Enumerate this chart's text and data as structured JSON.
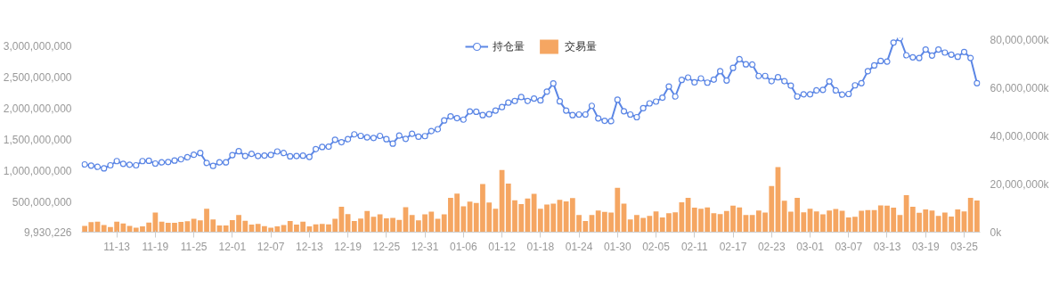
{
  "chart_data": {
    "type": "bar",
    "categories": [
      null,
      null,
      null,
      null,
      null,
      "11-13",
      null,
      null,
      null,
      null,
      null,
      "11-19",
      null,
      null,
      null,
      null,
      null,
      "11-25",
      null,
      null,
      null,
      null,
      null,
      "12-01",
      null,
      null,
      null,
      null,
      null,
      "12-07",
      null,
      null,
      null,
      null,
      null,
      "12-13",
      null,
      null,
      null,
      null,
      null,
      "12-19",
      null,
      null,
      null,
      null,
      null,
      "12-25",
      null,
      null,
      null,
      null,
      null,
      "12-31",
      null,
      null,
      null,
      null,
      null,
      "01-06",
      null,
      null,
      null,
      null,
      null,
      "01-12",
      null,
      null,
      null,
      null,
      null,
      "01-18",
      null,
      null,
      null,
      null,
      null,
      "01-24",
      null,
      null,
      null,
      null,
      null,
      "01-30",
      null,
      null,
      null,
      null,
      null,
      "02-05",
      null,
      null,
      null,
      null,
      null,
      "02-11",
      null,
      null,
      null,
      null,
      null,
      "02-17",
      null,
      null,
      null,
      null,
      null,
      "02-23",
      null,
      null,
      null,
      null,
      null,
      "03-01",
      null,
      null,
      null,
      null,
      null,
      "03-07",
      null,
      null,
      null,
      null,
      null,
      "03-13",
      null,
      null,
      null,
      null,
      null,
      "03-19",
      null,
      null,
      null,
      null,
      null,
      "03-25",
      null,
      null
    ],
    "series": [
      {
        "name": "持仓量",
        "type": "line",
        "color": "#5b86e5",
        "values": [
          1098000000,
          1078000000,
          1059000000,
          1035000000,
          1083000000,
          1151000000,
          1107000000,
          1093000000,
          1083000000,
          1151000000,
          1156000000,
          1112000000,
          1131000000,
          1136000000,
          1160000000,
          1180000000,
          1213000000,
          1252000000,
          1281000000,
          1122000000,
          1073000000,
          1131000000,
          1131000000,
          1247000000,
          1310000000,
          1233000000,
          1267000000,
          1233000000,
          1240000000,
          1250000000,
          1305000000,
          1281000000,
          1228000000,
          1233000000,
          1238000000,
          1218000000,
          1344000000,
          1378000000,
          1383000000,
          1494000000,
          1455000000,
          1503000000,
          1581000000,
          1556000000,
          1532000000,
          1523000000,
          1556000000,
          1503000000,
          1431000000,
          1561000000,
          1508000000,
          1590000000,
          1542000000,
          1552000000,
          1634000000,
          1663000000,
          1803000000,
          1870000000,
          1841000000,
          1817000000,
          1948000000,
          1943000000,
          1890000000,
          1904000000,
          1962000000,
          2018000000,
          2090000000,
          2117000000,
          2179000000,
          2117000000,
          2155000000,
          2126000000,
          2266000000,
          2397000000,
          2112000000,
          1962000000,
          1890000000,
          1899000000,
          1899000000,
          2039000000,
          1837000000,
          1798000000,
          1793000000,
          2136000000,
          1952000000,
          1899000000,
          1856000000,
          2001000000,
          2078000000,
          2107000000,
          2170000000,
          2349000000,
          2189000000,
          2455000000,
          2493000000,
          2416000000,
          2479000000,
          2411000000,
          2460000000,
          2595000000,
          2445000000,
          2648000000,
          2788000000,
          2705000000,
          2701000000,
          2518000000,
          2518000000,
          2435000000,
          2498000000,
          2435000000,
          2363000000,
          2189000000,
          2223000000,
          2223000000,
          2286000000,
          2295000000,
          2431000000,
          2286000000,
          2218000000,
          2228000000,
          2368000000,
          2402000000,
          2595000000,
          2687000000,
          2759000000,
          2749000000,
          3054000000,
          3126000000,
          2851000000,
          2817000000,
          2807000000,
          2943000000,
          2846000000,
          2943000000,
          2894000000,
          2861000000,
          2827000000,
          2904000000,
          2807000000,
          2402000000
        ]
      },
      {
        "name": "交易量",
        "axis": "y2",
        "color": "#f5a662",
        "values": [
          2640000,
          4150000,
          4400000,
          3020000,
          2140000,
          4400000,
          3650000,
          2640000,
          1890000,
          2390000,
          4030000,
          8180000,
          4400000,
          3900000,
          3900000,
          4280000,
          4530000,
          5540000,
          4910000,
          9810000,
          5280000,
          2770000,
          2770000,
          5030000,
          7170000,
          4780000,
          3150000,
          3400000,
          2520000,
          1890000,
          2390000,
          3020000,
          4650000,
          3150000,
          4400000,
          2390000,
          3270000,
          3400000,
          3300000,
          5540000,
          10570000,
          7550000,
          4650000,
          5660000,
          8810000,
          6420000,
          7420000,
          5790000,
          5910000,
          5160000,
          10440000,
          7170000,
          4910000,
          7420000,
          8550000,
          5540000,
          7420000,
          14340000,
          16100000,
          10820000,
          12710000,
          12200000,
          20130000,
          12330000,
          9810000,
          25910000,
          20250000,
          13340000,
          11700000,
          14090000,
          15980000,
          9810000,
          11570000,
          11950000,
          13460000,
          12830000,
          14220000,
          7170000,
          4650000,
          7170000,
          9060000,
          8430000,
          8180000,
          18490000,
          11950000,
          5280000,
          7170000,
          5910000,
          6790000,
          8680000,
          6160000,
          7930000,
          8300000,
          12450000,
          14340000,
          10190000,
          9810000,
          10320000,
          7930000,
          7550000,
          8810000,
          11070000,
          10300000,
          7170000,
          7170000,
          9060000,
          8180000,
          19250000,
          27170000,
          13080000,
          8550000,
          14340000,
          8300000,
          9810000,
          8680000,
          7420000,
          9060000,
          9690000,
          8930000,
          6160000,
          6420000,
          8930000,
          9180000,
          9180000,
          11200000,
          11070000,
          10190000,
          7170000,
          15470000,
          10570000,
          8050000,
          9440000,
          9060000,
          6790000,
          8180000,
          6540000,
          9440000,
          8680000,
          14340000,
          13210000
        ]
      }
    ],
    "ylim": [
      9930226,
      3130000000
    ],
    "yticks": [
      {
        "value": 9930226,
        "label": "9,930,226"
      },
      {
        "value": 500000000,
        "label": "500,000,000"
      },
      {
        "value": 1000000000,
        "label": "1,000,000,000"
      },
      {
        "value": 1500000000,
        "label": "1,500,000,000"
      },
      {
        "value": 2000000000,
        "label": "2,000,000,000"
      },
      {
        "value": 2500000000,
        "label": "2,500,000,000"
      },
      {
        "value": 3000000000,
        "label": "3,000,000,000"
      }
    ],
    "y2lim": [
      0,
      81100000
    ],
    "y2ticks": [
      {
        "value": 0,
        "label": "0k"
      },
      {
        "value": 20000000,
        "label": "20,000,000k"
      },
      {
        "value": 40000000,
        "label": "40,000,000k"
      },
      {
        "value": 60000000,
        "label": "60,000,000k"
      },
      {
        "value": 80000000,
        "label": "80,000,000k"
      }
    ],
    "legend": "top",
    "marker": "circle"
  }
}
